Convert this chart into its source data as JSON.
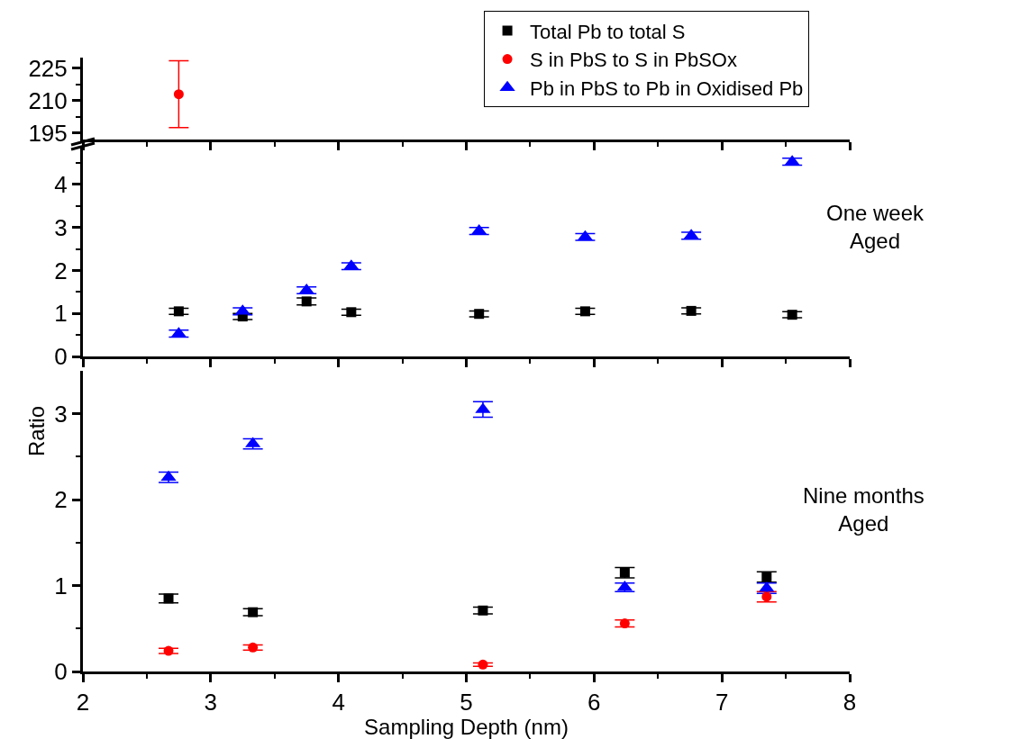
{
  "chart_data": [
    {
      "type": "scatter",
      "x": [
        2.75
      ],
      "xlim": [
        2,
        8
      ],
      "xticks": [
        2,
        3,
        4,
        5,
        6,
        7,
        8
      ],
      "ylim": [
        192,
        230
      ],
      "yticks": [
        195,
        210,
        225
      ],
      "tick_labels": "y",
      "grid": false,
      "legend": "top right",
      "series": [
        {
          "name": "Total Pb to total S",
          "color": "#000000",
          "marker": "square",
          "values": [
            null
          ]
        },
        {
          "name": "S in PbS to S in PbSOx",
          "color": "#ff0000",
          "marker": "circle",
          "values": [
            213
          ],
          "errors": [
            15.5
          ]
        },
        {
          "name": "Pb in PbS to Pb in Oxidised Pb",
          "color": "#0000ff",
          "marker": "triangle",
          "values": [
            null
          ]
        }
      ]
    },
    {
      "type": "scatter",
      "x": [
        2.75,
        3.25,
        3.75,
        4.1,
        5.1,
        5.93,
        6.76,
        7.55
      ],
      "xlim": [
        2,
        8
      ],
      "xticks": [
        2,
        3,
        4,
        5,
        6,
        7,
        8
      ],
      "ylim": [
        0,
        4.9
      ],
      "yticks": [
        0,
        1,
        2,
        3,
        4
      ],
      "tick_labels": "y",
      "grid": false,
      "annotations": [
        "One week\nAged"
      ],
      "series": [
        {
          "color": "#000000",
          "marker": "square",
          "values": [
            1.05,
            0.93,
            1.28,
            1.03,
            0.99,
            1.05,
            1.06,
            0.97
          ],
          "errors": [
            0.07,
            0.07,
            0.08,
            0.07,
            0.07,
            0.07,
            0.07,
            0.07
          ]
        },
        {
          "color": "#0000ff",
          "marker": "triangle",
          "values": [
            0.53,
            1.05,
            1.54,
            2.1,
            2.92,
            2.78,
            2.81,
            4.53
          ],
          "errors": [
            0.08,
            0.08,
            0.08,
            0.08,
            0.08,
            0.08,
            0.08,
            0.08
          ]
        }
      ]
    },
    {
      "type": "scatter",
      "x": [
        2.67,
        3.33,
        5.13,
        6.24,
        7.35
      ],
      "xlim": [
        2,
        8
      ],
      "xticks": [
        2,
        3,
        4,
        5,
        6,
        7,
        8
      ],
      "ylim": [
        0,
        3.5
      ],
      "yticks": [
        0,
        1,
        2,
        3
      ],
      "grid": false,
      "xlabel": "Sampling Depth (nm)",
      "ylabel": "Ratio",
      "annotations": [
        "Nine months\nAged"
      ],
      "series": [
        {
          "color": "#000000",
          "marker": "square",
          "values": [
            0.85,
            0.69,
            0.71,
            1.15,
            1.1
          ],
          "errors": [
            0.05,
            0.04,
            0.04,
            0.06,
            0.06
          ]
        },
        {
          "color": "#ff0000",
          "marker": "circle",
          "values": [
            0.24,
            0.28,
            0.08,
            0.56,
            0.87
          ],
          "errors": [
            0.03,
            0.03,
            0.02,
            0.04,
            0.06
          ]
        },
        {
          "color": "#0000ff",
          "marker": "triangle",
          "values": [
            2.26,
            2.65,
            3.05,
            0.98,
            0.97
          ],
          "errors": [
            0.06,
            0.06,
            0.09,
            0.05,
            0.06
          ]
        }
      ]
    }
  ]
}
